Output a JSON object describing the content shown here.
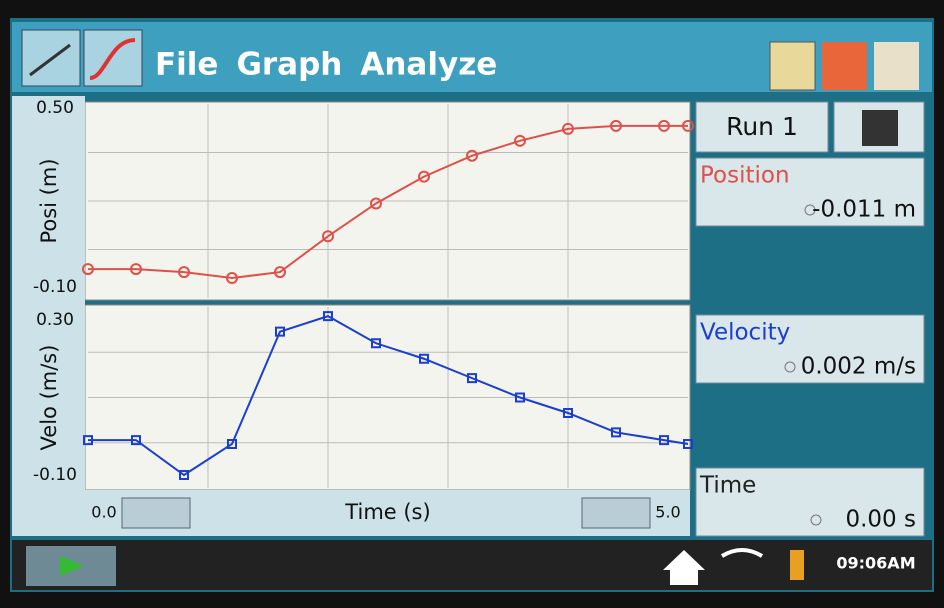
{
  "menu": {
    "items": [
      "File",
      "Graph",
      "Analyze"
    ]
  },
  "chart_data": [
    {
      "type": "line",
      "ylabel": "Posi (m)",
      "x": [
        0,
        0.4,
        0.8,
        1.2,
        1.6,
        2.0,
        2.4,
        2.8,
        3.2,
        3.6,
        4.0,
        4.4,
        4.8,
        5.0
      ],
      "xlim": [
        0,
        5.0
      ],
      "series": [
        {
          "name": "Position",
          "color": "#e0504a",
          "marker": "circle",
          "values": [
            -0.04,
            -0.04,
            -0.05,
            -0.07,
            -0.05,
            0.07,
            0.18,
            0.27,
            0.34,
            0.39,
            0.43,
            0.44,
            0.44,
            0.44
          ]
        }
      ],
      "ylim": [
        -0.1,
        0.5
      ],
      "yticks": [
        {
          "value": 0.5,
          "label": "0.50"
        },
        {
          "value": -0.1,
          "label": "-0.10"
        }
      ],
      "grid": true
    },
    {
      "type": "line",
      "ylabel": "Velo (m/s)",
      "xlabel": "Time (s)",
      "x": [
        0,
        0.4,
        0.8,
        1.2,
        1.6,
        2.0,
        2.4,
        2.8,
        3.2,
        3.6,
        4.0,
        4.4,
        4.8,
        5.0
      ],
      "xlim": [
        0,
        5.0
      ],
      "xticks": [
        {
          "value": 0,
          "label": "0.0"
        },
        {
          "value": 5.0,
          "label": "5.0"
        }
      ],
      "series": [
        {
          "name": "Velocity",
          "color": "#1a3fd0",
          "marker": "square",
          "values": [
            -0.01,
            -0.01,
            -0.1,
            -0.02,
            0.27,
            0.31,
            0.24,
            0.2,
            0.15,
            0.1,
            0.06,
            0.01,
            -0.01,
            -0.02
          ]
        }
      ],
      "ylim": [
        -0.1,
        0.3
      ],
      "yticks": [
        {
          "value": 0.3,
          "label": "0.30"
        },
        {
          "value": -0.1,
          "label": "-0.10"
        }
      ],
      "grid": true
    }
  ],
  "panel": {
    "run": "Run 1",
    "meters": [
      {
        "name": "Position",
        "value": "-0.011 m",
        "color": "#e0504a"
      },
      {
        "name": "Velocity",
        "value": "0.002 m/s",
        "color": "#1a3fd0"
      },
      {
        "name": "Time",
        "value": "0.00 s",
        "color": "#222222"
      }
    ]
  },
  "status": {
    "clock": "09:06AM"
  }
}
